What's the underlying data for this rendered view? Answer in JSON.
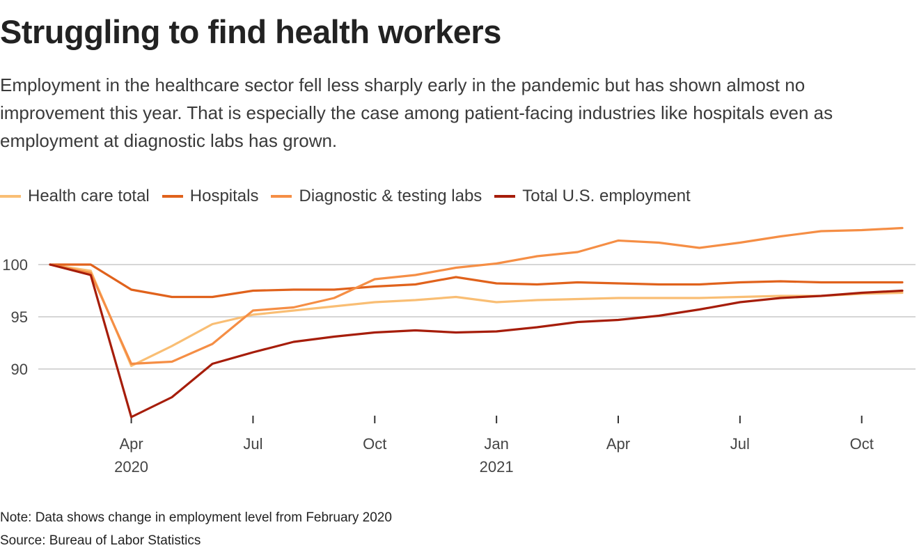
{
  "title": "Struggling to find health workers",
  "subtitle": "Employment in the healthcare sector fell less sharply early in the pandemic but has shown almost no improvement this year. That is especially the case among patient-facing industries like hospitals even as employment at diagnostic labs has grown.",
  "note": "Note: Data shows change in employment level from February 2020",
  "source": "Source: Bureau of Labor Statistics",
  "chart_data": {
    "type": "line",
    "title": "Struggling to find health workers",
    "xlabel": "",
    "ylabel": "",
    "x": [
      "2020-02",
      "2020-03",
      "2020-04",
      "2020-05",
      "2020-06",
      "2020-07",
      "2020-08",
      "2020-09",
      "2020-10",
      "2020-11",
      "2020-12",
      "2021-01",
      "2021-02",
      "2021-03",
      "2021-04",
      "2021-05",
      "2021-06",
      "2021-07",
      "2021-08",
      "2021-09",
      "2021-10",
      "2021-11"
    ],
    "ylim": [
      85,
      104
    ],
    "yticks": [
      90,
      95,
      100
    ],
    "xticks": [
      {
        "x": "2020-04",
        "label": "Apr",
        "year": "2020"
      },
      {
        "x": "2020-07",
        "label": "Jul",
        "year": ""
      },
      {
        "x": "2020-10",
        "label": "Oct",
        "year": ""
      },
      {
        "x": "2021-01",
        "label": "Jan",
        "year": "2021"
      },
      {
        "x": "2021-04",
        "label": "Apr",
        "year": ""
      },
      {
        "x": "2021-07",
        "label": "Jul",
        "year": ""
      },
      {
        "x": "2021-10",
        "label": "Oct",
        "year": ""
      }
    ],
    "grid": true,
    "legend_position": "top-left",
    "series": [
      {
        "name": "Health care total",
        "color": "#f9be74",
        "values": [
          100,
          99.4,
          90.3,
          92.2,
          94.3,
          95.2,
          95.6,
          96.0,
          96.4,
          96.6,
          96.9,
          96.4,
          96.6,
          96.7,
          96.8,
          96.8,
          96.8,
          96.9,
          97.0,
          97.0,
          97.2,
          97.3
        ]
      },
      {
        "name": "Hospitals",
        "color": "#e0621c",
        "values": [
          100,
          100,
          97.6,
          96.9,
          96.9,
          97.5,
          97.6,
          97.6,
          97.9,
          98.1,
          98.8,
          98.2,
          98.1,
          98.3,
          98.2,
          98.1,
          98.1,
          98.3,
          98.4,
          98.3,
          98.3,
          98.3
        ]
      },
      {
        "name": "Diagnostic & testing labs",
        "color": "#f58e45",
        "values": [
          100,
          99.2,
          90.5,
          90.7,
          92.4,
          95.6,
          95.9,
          96.8,
          98.6,
          99.0,
          99.7,
          100.1,
          100.8,
          101.2,
          102.3,
          102.1,
          101.6,
          102.1,
          102.7,
          103.2,
          103.3,
          103.5
        ]
      },
      {
        "name": "Total U.S. employment",
        "color": "#a61d0a",
        "values": [
          100,
          99.0,
          85.4,
          87.3,
          90.5,
          91.6,
          92.6,
          93.1,
          93.5,
          93.7,
          93.5,
          93.6,
          94.0,
          94.5,
          94.7,
          95.1,
          95.7,
          96.4,
          96.8,
          97.0,
          97.3,
          97.5
        ]
      }
    ]
  }
}
